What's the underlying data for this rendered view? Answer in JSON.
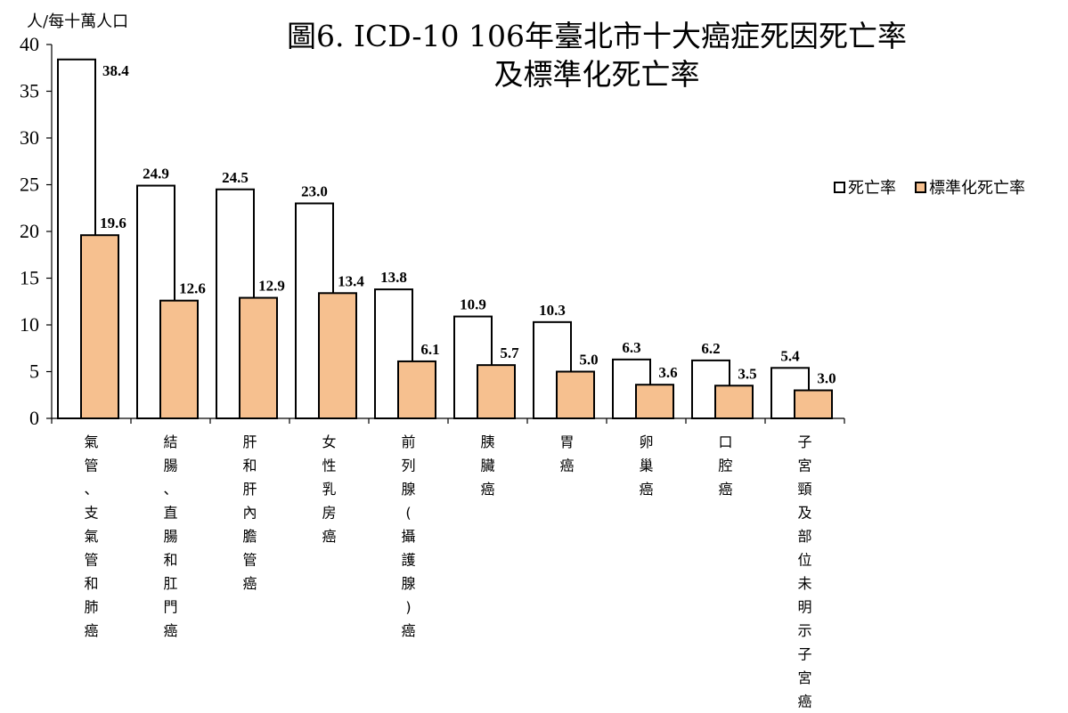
{
  "chart_data": {
    "type": "bar",
    "title_line1": "圖6. ICD-10 106年臺北市十大癌症死因死亡率",
    "title_line2": "及標準化死亡率",
    "ylabel": "人/每十萬人口",
    "ylim": [
      0,
      40
    ],
    "yticks": [
      "0",
      "5",
      "10",
      "15",
      "20",
      "25",
      "30",
      "35",
      "40"
    ],
    "categories": [
      "氣管、支氣管和肺癌",
      "結腸、直腸和肛門癌",
      "肝和肝內膽管癌",
      "女性乳房癌",
      "前列腺(攝護腺)癌",
      "胰臟癌",
      "胃癌",
      "卵巢癌",
      "口腔癌",
      "子宮頸及部位未明示子宮癌"
    ],
    "series": [
      {
        "name": "死亡率",
        "color": "#ffffff",
        "values": [
          38.4,
          24.9,
          24.5,
          23.0,
          13.8,
          10.9,
          10.3,
          6.3,
          6.2,
          5.4
        ],
        "labels": [
          "38.4",
          "24.9",
          "24.5",
          "23.0",
          "13.8",
          "10.9",
          "10.3",
          "6.3",
          "6.2",
          "5.4"
        ]
      },
      {
        "name": "標準化死亡率",
        "color": "#f6c08f",
        "values": [
          19.6,
          12.6,
          12.9,
          13.4,
          6.1,
          5.7,
          5.0,
          3.6,
          3.5,
          3.0
        ],
        "labels": [
          "19.6",
          "12.6",
          "12.9",
          "13.4",
          "6.1",
          "5.7",
          "5.0",
          "3.6",
          "3.5",
          "3.0"
        ]
      }
    ],
    "legend_position": "right",
    "grid": false
  }
}
